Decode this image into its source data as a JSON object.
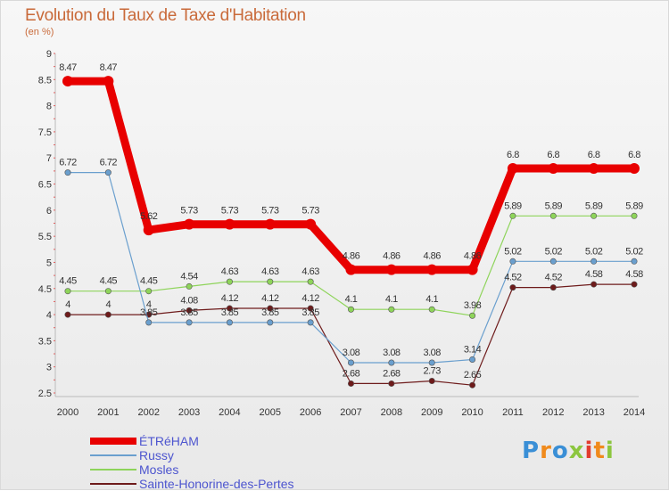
{
  "header": {
    "title": "Evolution du Taux de Taxe d'Habitation",
    "subtitle": "(en %)"
  },
  "logo": {
    "text": "Proxiti"
  },
  "chart_data": {
    "type": "line",
    "title": "Evolution du Taux de Taxe d'Habitation",
    "ylabel": "(en %)",
    "xlabel": "",
    "ylim": [
      2.5,
      9
    ],
    "yticks": [
      "2.5",
      "3",
      "3.5",
      "4",
      "4.5",
      "5",
      "5.5",
      "6",
      "6.5",
      "7",
      "7.5",
      "8",
      "8.5",
      "9"
    ],
    "grid": false,
    "legend_position": "bottom-left",
    "categories": [
      "2000",
      "2001",
      "2002",
      "2003",
      "2004",
      "2005",
      "2006",
      "2007",
      "2008",
      "2009",
      "2010",
      "2011",
      "2012",
      "2013",
      "2014"
    ],
    "series": [
      {
        "name": "ÉTRéHAM",
        "color": "#e80000",
        "values": [
          8.47,
          8.47,
          5.62,
          5.73,
          5.73,
          5.73,
          5.73,
          4.86,
          4.86,
          4.86,
          4.86,
          6.8,
          6.8,
          6.8,
          6.8
        ],
        "labels": [
          "8.47",
          "8.47",
          "5.62",
          "5.73",
          "5.73",
          "5.73",
          "5.73",
          "4.86",
          "4.86",
          "4.86",
          "4.86",
          "6.8",
          "6.8",
          "6.8",
          "6.8"
        ]
      },
      {
        "name": "Russy",
        "color": "#6a9fce",
        "values": [
          6.72,
          6.72,
          3.85,
          3.85,
          3.85,
          3.85,
          3.85,
          3.08,
          3.08,
          3.08,
          3.14,
          5.02,
          5.02,
          5.02,
          5.02
        ],
        "labels": [
          "6.72",
          "6.72",
          "3.85",
          "3.85",
          "3.85",
          "3.85",
          "3.85",
          "3.08",
          "3.08",
          "3.08",
          "3.14",
          "5.02",
          "5.02",
          "5.02",
          "5.02"
        ]
      },
      {
        "name": "Mosles",
        "color": "#8ed45a",
        "values": [
          4.45,
          4.45,
          4.45,
          4.54,
          4.63,
          4.63,
          4.63,
          4.1,
          4.1,
          4.1,
          3.98,
          5.89,
          5.89,
          5.89,
          5.89
        ],
        "labels": [
          "4.45",
          "4.45",
          "4.45",
          "4.54",
          "4.63",
          "4.63",
          "4.63",
          "4.1",
          "4.1",
          "4.1",
          "3.98",
          "5.89",
          "5.89",
          "5.89",
          "5.89"
        ]
      },
      {
        "name": "Sainte-Honorine-des-Pertes",
        "color": "#6e1b1b",
        "values": [
          4,
          4,
          4,
          4.08,
          4.12,
          4.12,
          4.12,
          2.68,
          2.68,
          2.73,
          2.65,
          4.52,
          4.52,
          4.58,
          4.58
        ],
        "labels": [
          "4",
          "4",
          "4",
          "4.08",
          "4.12",
          "4.12",
          "4.12",
          "2.68",
          "2.68",
          "2.73",
          "2.65",
          "4.52",
          "4.52",
          "4.58",
          "4.58"
        ]
      }
    ]
  }
}
